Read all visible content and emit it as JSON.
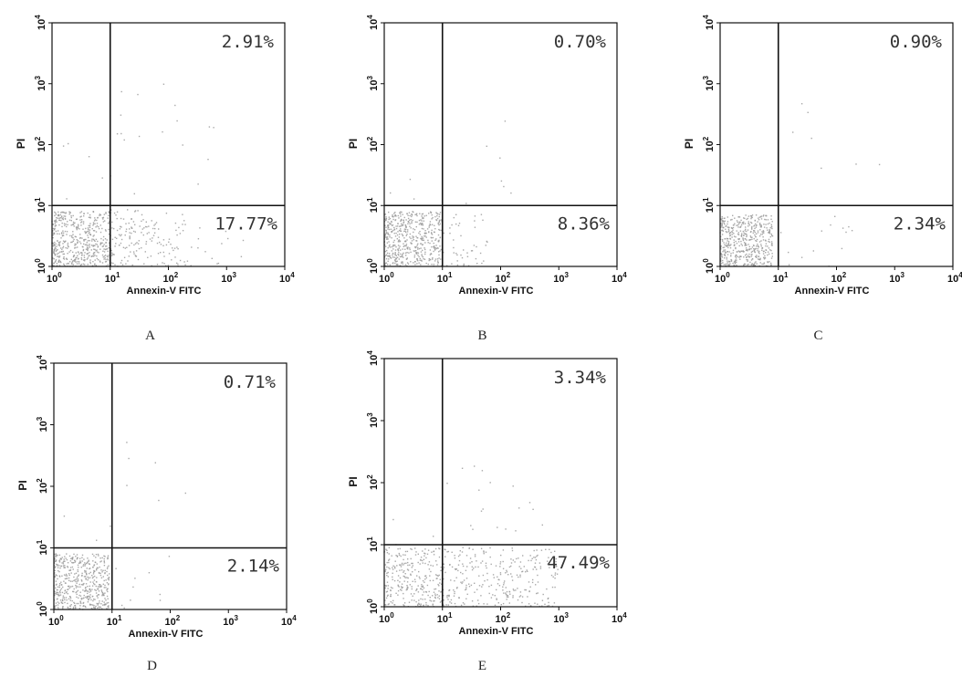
{
  "chart_data": [
    {
      "type": "scatter",
      "panel_label": "A",
      "xlabel": "Annexin-V FITC",
      "ylabel": "PI",
      "x_scale": "log",
      "y_scale": "log",
      "xlim": [
        1,
        10000
      ],
      "ylim": [
        1,
        10000
      ],
      "x_ticks": [
        "10",
        "10",
        "10",
        "10",
        "10"
      ],
      "x_tick_exponents": [
        "0",
        "1",
        "2",
        "3",
        "4"
      ],
      "y_ticks": [
        "10",
        "10",
        "10",
        "10",
        "10"
      ],
      "y_tick_exponents": [
        "0",
        "1",
        "2",
        "3",
        "4"
      ],
      "gate": {
        "x": 10,
        "y": 10
      },
      "quadrant_labels": {
        "upper_right": "2.91%",
        "lower_right": "17.77%"
      },
      "point_color": "#9a9a9a",
      "populations": [
        {
          "x_range": [
            1,
            10
          ],
          "y_range": [
            1,
            8
          ],
          "count": 520
        },
        {
          "x_range": [
            10,
            200
          ],
          "y_range": [
            1,
            9
          ],
          "count": 170
        },
        {
          "x_range": [
            200,
            2000
          ],
          "y_range": [
            1,
            5
          ],
          "count": 15
        },
        {
          "x_range": [
            10,
            1000
          ],
          "y_range": [
            10,
            1000
          ],
          "count": 18
        },
        {
          "x_range": [
            1,
            10
          ],
          "y_range": [
            10,
            200
          ],
          "count": 5
        }
      ]
    },
    {
      "type": "scatter",
      "panel_label": "B",
      "xlabel": "Annexin-V FITC",
      "ylabel": "PI",
      "x_scale": "log",
      "y_scale": "log",
      "xlim": [
        1,
        10000
      ],
      "ylim": [
        1,
        10000
      ],
      "x_ticks": [
        "10",
        "10",
        "10",
        "10",
        "10"
      ],
      "x_tick_exponents": [
        "0",
        "1",
        "2",
        "3",
        "4"
      ],
      "y_ticks": [
        "10",
        "10",
        "10",
        "10",
        "10"
      ],
      "y_tick_exponents": [
        "0",
        "1",
        "2",
        "3",
        "4"
      ],
      "gate": {
        "x": 10,
        "y": 10
      },
      "quadrant_labels": {
        "upper_right": "0.70%",
        "lower_right": "8.36%"
      },
      "point_color": "#9a9a9a",
      "populations": [
        {
          "x_range": [
            1,
            10
          ],
          "y_range": [
            1,
            8
          ],
          "count": 520
        },
        {
          "x_range": [
            10,
            60
          ],
          "y_range": [
            1,
            8
          ],
          "count": 45
        },
        {
          "x_range": [
            15,
            300
          ],
          "y_range": [
            10,
            300
          ],
          "count": 7
        },
        {
          "x_range": [
            1,
            10
          ],
          "y_range": [
            10,
            100
          ],
          "count": 3
        }
      ]
    },
    {
      "type": "scatter",
      "panel_label": "C",
      "xlabel": "Annexin-V FITC",
      "ylabel": "PI",
      "x_scale": "log",
      "y_scale": "log",
      "xlim": [
        1,
        10000
      ],
      "ylim": [
        1,
        10000
      ],
      "x_ticks": [
        "10",
        "10",
        "10",
        "10",
        "10"
      ],
      "x_tick_exponents": [
        "0",
        "1",
        "2",
        "3",
        "4"
      ],
      "y_ticks": [
        "10",
        "10",
        "10",
        "10",
        "10"
      ],
      "y_tick_exponents": [
        "0",
        "1",
        "2",
        "3",
        "4"
      ],
      "gate": {
        "x": 10,
        "y": 10
      },
      "quadrant_labels": {
        "upper_right": "0.90%",
        "lower_right": "2.34%"
      },
      "point_color": "#9a9a9a",
      "populations": [
        {
          "x_range": [
            1,
            8
          ],
          "y_range": [
            1,
            7
          ],
          "count": 520
        },
        {
          "x_range": [
            10,
            200
          ],
          "y_range": [
            1,
            8
          ],
          "count": 14
        },
        {
          "x_range": [
            15,
            800
          ],
          "y_range": [
            10,
            900
          ],
          "count": 7
        }
      ]
    },
    {
      "type": "scatter",
      "panel_label": "D",
      "xlabel": "Annexin-V FITC",
      "ylabel": "PI",
      "x_scale": "log",
      "y_scale": "log",
      "xlim": [
        1,
        10000
      ],
      "ylim": [
        1,
        10000
      ],
      "x_ticks": [
        "10",
        "10",
        "10",
        "10",
        "10"
      ],
      "x_tick_exponents": [
        "0",
        "1",
        "2",
        "3",
        "4"
      ],
      "y_ticks": [
        "10",
        "10",
        "10",
        "10",
        "10"
      ],
      "y_tick_exponents": [
        "0",
        "1",
        "2",
        "3",
        "4"
      ],
      "gate": {
        "x": 10,
        "y": 10
      },
      "quadrant_labels": {
        "upper_right": "0.71%",
        "lower_right": "2.14%"
      },
      "point_color": "#9a9a9a",
      "populations": [
        {
          "x_range": [
            1,
            9
          ],
          "y_range": [
            1,
            8
          ],
          "count": 520
        },
        {
          "x_range": [
            10,
            100
          ],
          "y_range": [
            1,
            8
          ],
          "count": 10
        },
        {
          "x_range": [
            15,
            250
          ],
          "y_range": [
            20,
            600
          ],
          "count": 6
        },
        {
          "x_range": [
            1,
            10
          ],
          "y_range": [
            10,
            200
          ],
          "count": 3
        }
      ]
    },
    {
      "type": "scatter",
      "panel_label": "E",
      "xlabel": "Annexin-V FITC",
      "ylabel": "PI",
      "x_scale": "log",
      "y_scale": "log",
      "xlim": [
        1,
        10000
      ],
      "ylim": [
        1,
        10000
      ],
      "x_ticks": [
        "10",
        "10",
        "10",
        "10",
        "10"
      ],
      "x_tick_exponents": [
        "0",
        "1",
        "2",
        "3",
        "4"
      ],
      "y_ticks": [
        "10",
        "10",
        "10",
        "10",
        "10"
      ],
      "y_tick_exponents": [
        "0",
        "1",
        "2",
        "3",
        "4"
      ],
      "gate": {
        "x": 10,
        "y": 10
      },
      "quadrant_labels": {
        "upper_right": "3.34%",
        "lower_right": "47.49%"
      },
      "point_color": "#9a9a9a",
      "populations": [
        {
          "x_range": [
            1,
            10
          ],
          "y_range": [
            1,
            9
          ],
          "count": 280
        },
        {
          "x_range": [
            10,
            1000
          ],
          "y_range": [
            1,
            9
          ],
          "count": 300
        },
        {
          "x_range": [
            10,
            800
          ],
          "y_range": [
            10,
            200
          ],
          "count": 18
        },
        {
          "x_range": [
            1,
            10
          ],
          "y_range": [
            10,
            80
          ],
          "count": 3
        }
      ]
    }
  ]
}
